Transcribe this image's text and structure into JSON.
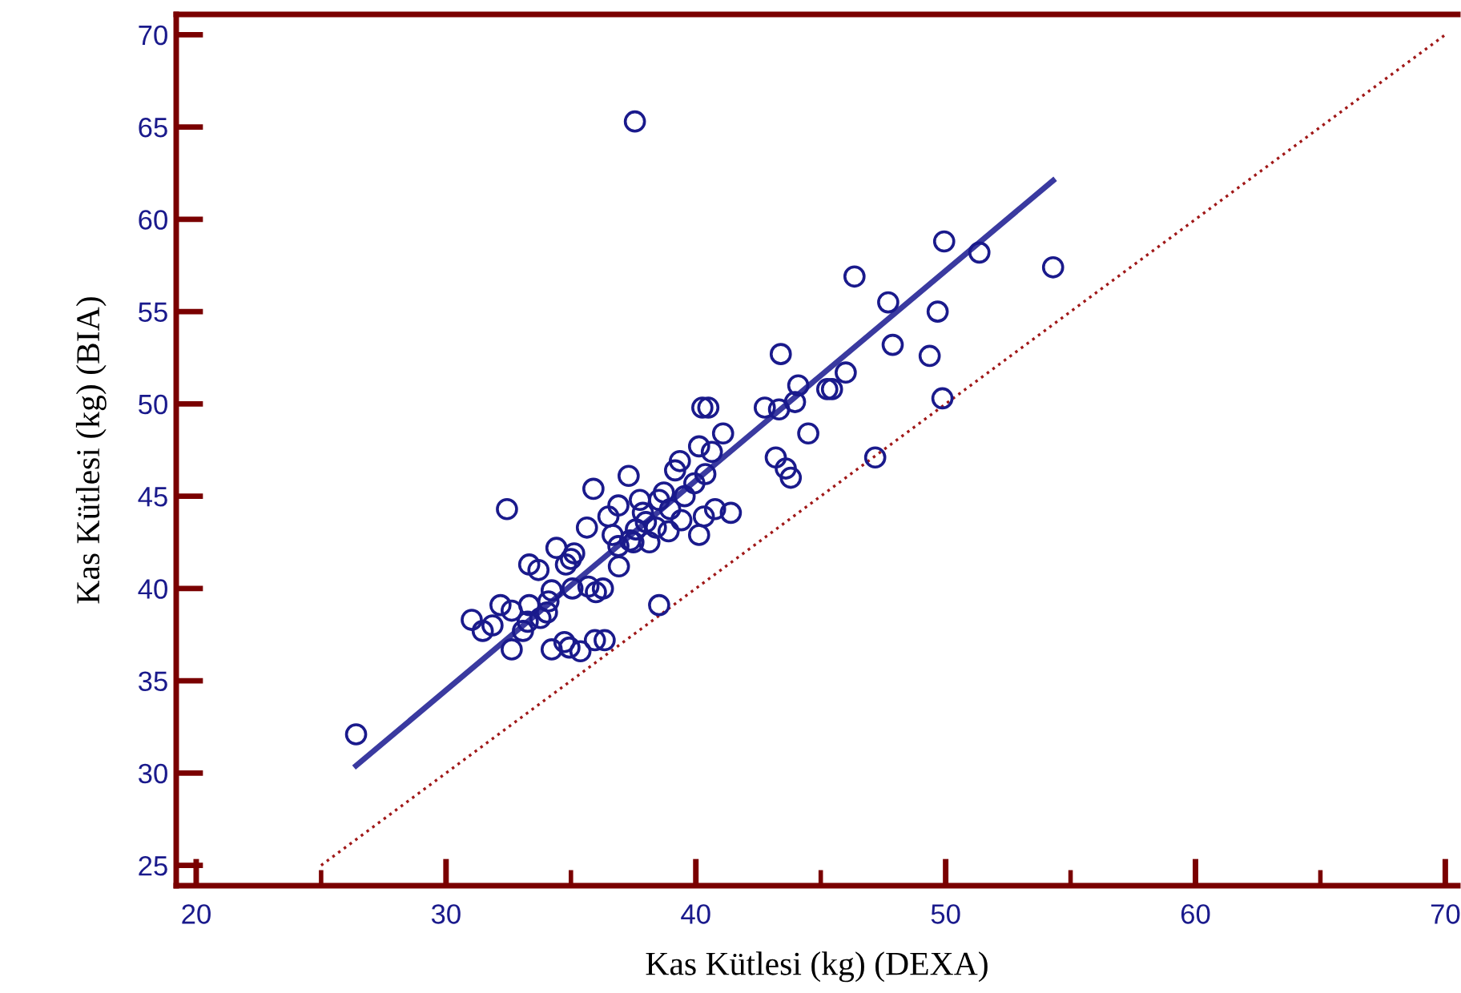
{
  "chart_data": {
    "type": "scatter",
    "xlabel": "Kas Kütlesi (kg) (DEXA)",
    "ylabel": "Kas Kütlesi (kg) (BIA)",
    "xlim": [
      19.2,
      70.5
    ],
    "ylim": [
      23.9,
      71.1
    ],
    "xticks": [
      20,
      {
        "value": 25,
        "label": null
      },
      30,
      {
        "value": 35,
        "label": null
      },
      40,
      {
        "value": 45,
        "label": null
      },
      50,
      {
        "value": 55,
        "label": null
      },
      60,
      {
        "value": 65,
        "label": null
      },
      70
    ],
    "yticks": [
      25,
      30,
      35,
      40,
      45,
      50,
      55,
      60,
      65,
      70
    ],
    "grid": false,
    "legend": false,
    "x": [
      26.4,
      37.56,
      49.94,
      51.35,
      54.3,
      46.35,
      47.7,
      49.68,
      47.88,
      43.4,
      49.36,
      46.0,
      44.1,
      45.45,
      45.26,
      49.87,
      40.5,
      40.26,
      42.76,
      43.33,
      43.97,
      41.09,
      44.5,
      40.13,
      40.64,
      43.2,
      47.18,
      43.6,
      43.8,
      37.31,
      39.36,
      39.17,
      40.38,
      39.94,
      35.9,
      32.44,
      38.72,
      39.55,
      38.53,
      37.76,
      36.9,
      38.97,
      40.77,
      41.4,
      40.32,
      36.5,
      37.88,
      39.42,
      38.0,
      35.64,
      37.6,
      38.4,
      38.91,
      36.67,
      40.13,
      37.5,
      38.14,
      36.9,
      34.42,
      37.37,
      35.13,
      35.0,
      33.33,
      34.8,
      33.7,
      36.92,
      36.28,
      35.7,
      36.0,
      35.06,
      34.23,
      33.33,
      32.18,
      34.1,
      34.04,
      32.63,
      33.78,
      31.03,
      31.86,
      33.27,
      31.47,
      33.08,
      38.53,
      32.63,
      34.23,
      34.74,
      34.94,
      35.38,
      35.96,
      36.35
    ],
    "series": [
      {
        "type": "scatter",
        "color": "#1a1a8c",
        "marker": "circle",
        "values": [
          32.1,
          65.3,
          58.8,
          58.2,
          57.4,
          56.9,
          55.5,
          55.0,
          53.2,
          52.7,
          52.6,
          51.7,
          51.0,
          50.8,
          50.8,
          50.3,
          49.8,
          49.8,
          49.8,
          49.7,
          50.1,
          48.4,
          48.4,
          47.7,
          47.4,
          47.1,
          47.1,
          46.5,
          46.0,
          46.1,
          46.9,
          46.4,
          46.2,
          45.7,
          45.4,
          44.3,
          45.2,
          45.0,
          44.8,
          44.8,
          44.5,
          44.3,
          44.3,
          44.1,
          43.9,
          43.9,
          44.1,
          43.7,
          43.6,
          43.3,
          43.2,
          43.3,
          43.1,
          42.9,
          42.9,
          42.5,
          42.5,
          42.3,
          42.2,
          42.6,
          41.9,
          41.6,
          41.3,
          41.3,
          41.0,
          41.2,
          40.0,
          40.1,
          39.8,
          40.0,
          39.9,
          39.1,
          39.1,
          39.3,
          38.7,
          38.8,
          38.4,
          38.3,
          38.0,
          38.2,
          37.7,
          37.7,
          39.1,
          36.7,
          36.7,
          37.1,
          36.8,
          36.6,
          37.2,
          37.2
        ]
      },
      {
        "type": "line",
        "color": "#3a3aa0",
        "x": [
          26.4,
          54.3
        ],
        "values": [
          30.4,
          62.1
        ],
        "line_style": "solid"
      },
      {
        "type": "line",
        "color": "#a01818",
        "x": [
          25,
          70
        ],
        "values": [
          25,
          70
        ],
        "line_style": "dotted"
      }
    ]
  }
}
